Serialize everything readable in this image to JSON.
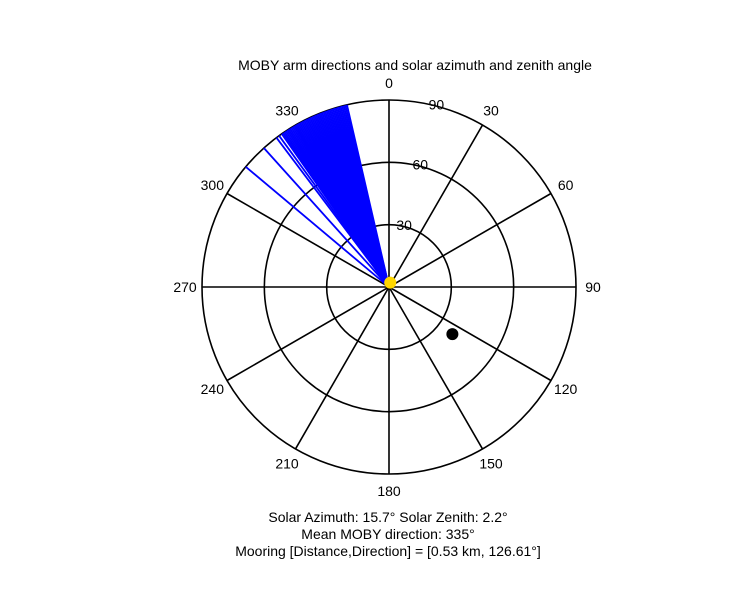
{
  "chart_data": {
    "type": "polar",
    "title": "MOBY arm directions and solar azimuth and zenith angle",
    "azimuth_ticks": [
      {
        "angle": 0,
        "label": "0"
      },
      {
        "angle": 30,
        "label": "30"
      },
      {
        "angle": 60,
        "label": "60"
      },
      {
        "angle": 90,
        "label": "90"
      },
      {
        "angle": 120,
        "label": "120"
      },
      {
        "angle": 150,
        "label": "150"
      },
      {
        "angle": 180,
        "label": "180"
      },
      {
        "angle": 210,
        "label": "210"
      },
      {
        "angle": 240,
        "label": "240"
      },
      {
        "angle": 270,
        "label": "270"
      },
      {
        "angle": 300,
        "label": "300"
      },
      {
        "angle": 330,
        "label": "330"
      }
    ],
    "radial_ticks": [
      {
        "value": 30,
        "label": "30"
      },
      {
        "value": 60,
        "label": "60"
      },
      {
        "value": 90,
        "label": "90"
      }
    ],
    "radial_max": 90,
    "arm_directions": {
      "color": "#0000ff",
      "angles": [
        323,
        324,
        325,
        325.5,
        326,
        326.5,
        327,
        327.5,
        328,
        328.5,
        329,
        329.5,
        330,
        330.5,
        331,
        331.5,
        332,
        332.5,
        333,
        333.5,
        334,
        334.5,
        335,
        335.5,
        336,
        336.5,
        337,
        337.5,
        338,
        338.5,
        339,
        339.5,
        340,
        340.5,
        341,
        341.5,
        342,
        342.5,
        343,
        343.5,
        344,
        344.5,
        345,
        345.5,
        346,
        346.5,
        347
      ],
      "outlier_angles": [
        310,
        318
      ]
    },
    "solar_marker": {
      "azimuth": 15.7,
      "zenith": 2.2,
      "color": "#ffd700"
    },
    "mooring_marker": {
      "direction": 126.61,
      "radial": 38,
      "color": "#000000"
    },
    "annotations": [
      "Solar Azimuth: 15.7°   Solar Zenith: 2.2°",
      "Mean MOBY direction: 335°",
      "Mooring [Distance,Direction] = [0.53 km, 126.61°]"
    ]
  }
}
